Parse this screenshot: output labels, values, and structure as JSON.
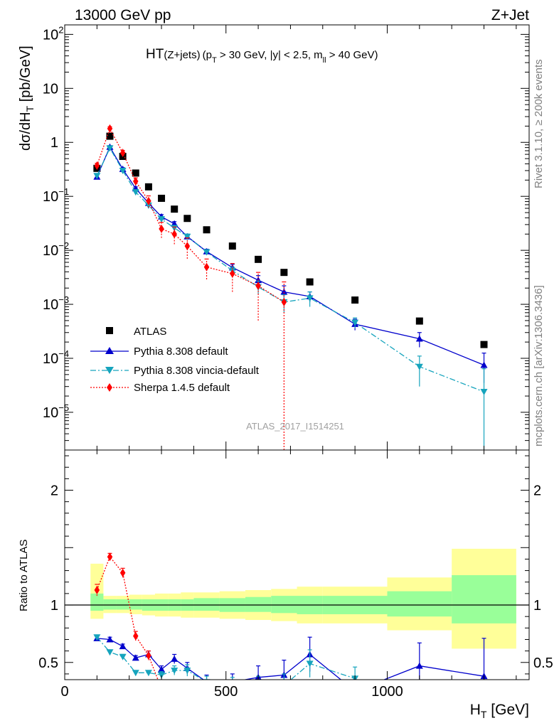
{
  "header": {
    "left_label": "13000 GeV pp",
    "right_label": "Z+Jet"
  },
  "side_labels": {
    "rivet": "Rivet 3.1.10, ≥ 200k events",
    "mcplots": "mcplots.cern.ch [arXiv:1306.3436]"
  },
  "chart_data": [
    {
      "type": "scatter",
      "panel": "main",
      "title": "HT(Z+jets) (pT > 30 GeV, |y| < 2.5, mll > 40 GeV)",
      "title_parts": {
        "base": "HT",
        "paren": "(Z+jets)",
        "p": "(p",
        "T": "T",
        "cut1": " > 30 GeV, |y| < 2.5, m",
        "ll": "ll",
        "cut2": " > 40 GeV)"
      },
      "ylabel": "dσ/dH_T [pb/GeV]",
      "ylabel_parts": {
        "main": "dσ/dH",
        "sub": "T",
        "unit": " [pb/GeV]"
      },
      "xlabel": "H_T [GeV]",
      "xlim": [
        0,
        1440
      ],
      "ylim": [
        2e-06,
        150
      ],
      "yscale": "log",
      "y_ticks": [
        {
          "value": 100,
          "base": "10",
          "exp": "2"
        },
        {
          "value": 10,
          "base": "10",
          "exp": ""
        },
        {
          "value": 1,
          "base": "1",
          "exp": ""
        },
        {
          "value": 0.1,
          "base": "10",
          "exp": "−1"
        },
        {
          "value": 0.01,
          "base": "10",
          "exp": "−2"
        },
        {
          "value": 0.001,
          "base": "10",
          "exp": "−3"
        },
        {
          "value": 0.0001,
          "base": "10",
          "exp": "−4"
        },
        {
          "value": 1e-05,
          "base": "10",
          "exp": "−5"
        }
      ],
      "watermark": "ATLAS_2017_I1514251",
      "legend_position": "lower-left",
      "series": [
        {
          "name": "ATLAS",
          "color": "#000000",
          "marker": "square",
          "x": [
            100,
            140,
            180,
            220,
            260,
            300,
            340,
            380,
            440,
            520,
            600,
            680,
            760,
            900,
            1100,
            1300
          ],
          "y": [
            0.33,
            1.3,
            0.55,
            0.27,
            0.15,
            0.092,
            0.058,
            0.039,
            0.024,
            0.012,
            0.0068,
            0.0039,
            0.0026,
            0.0012,
            0.00049,
            0.00018
          ]
        },
        {
          "name": "Pythia 8.308 default",
          "color": "#0000cc",
          "marker": "triangle-up",
          "line": "solid",
          "x": [
            100,
            140,
            180,
            220,
            260,
            300,
            340,
            380,
            440,
            520,
            600,
            680,
            760,
            900,
            1100,
            1300
          ],
          "y": [
            0.23,
            0.82,
            0.32,
            0.14,
            0.075,
            0.042,
            0.031,
            0.018,
            0.0095,
            0.0048,
            0.0028,
            0.0017,
            0.0014,
            0.00043,
            0.00023,
            7.5e-05
          ],
          "err_low": [
            0.02,
            0.05,
            0.02,
            0.01,
            0.006,
            0.004,
            0.003,
            0.002,
            0.001,
            0.0007,
            0.0006,
            0.0005,
            0.0003,
            0.0001,
            7e-05,
            4e-05
          ],
          "err_high": [
            0.02,
            0.05,
            0.02,
            0.01,
            0.006,
            0.004,
            0.003,
            0.002,
            0.001,
            0.0007,
            0.0006,
            0.0005,
            0.0003,
            0.0001,
            7e-05,
            5e-05
          ]
        },
        {
          "name": "Pythia 8.308 vincia-default",
          "color": "#16a4bd",
          "marker": "triangle-down",
          "line": "dashdot",
          "x": [
            100,
            140,
            180,
            220,
            260,
            300,
            340,
            380,
            440,
            520,
            600,
            680,
            760,
            900,
            1100,
            1300
          ],
          "y": [
            0.24,
            0.78,
            0.3,
            0.12,
            0.068,
            0.038,
            0.026,
            0.018,
            0.0093,
            0.0042,
            0.0021,
            0.0011,
            0.0013,
            0.00046,
            7e-05,
            2.4e-05
          ],
          "err_low": [
            0.02,
            0.05,
            0.02,
            0.01,
            0.006,
            0.004,
            0.003,
            0.002,
            0.001,
            0.0007,
            0.0006,
            0.0004,
            0.0004,
            0.0001,
            4e-05,
            2.3e-05
          ],
          "err_high": [
            0.02,
            0.05,
            0.02,
            0.01,
            0.006,
            0.004,
            0.003,
            0.002,
            0.001,
            0.0007,
            0.0006,
            0.0004,
            0.0004,
            0.0001,
            4e-05,
            4e-05
          ]
        },
        {
          "name": "Sherpa 1.4.5 default",
          "color": "#ff0000",
          "marker": "diamond",
          "line": "dotted",
          "x": [
            100,
            140,
            180,
            220,
            260,
            300,
            340,
            380,
            440,
            520,
            600,
            680
          ],
          "y": [
            0.37,
            1.8,
            0.64,
            0.19,
            0.082,
            0.025,
            0.02,
            0.012,
            0.0049,
            0.0037,
            0.0022,
            0.0011
          ],
          "err_low": [
            0.04,
            0.15,
            0.07,
            0.03,
            0.02,
            0.008,
            0.007,
            0.005,
            0.002,
            0.002,
            0.0017,
            0.0011
          ],
          "err_high": [
            0.04,
            0.15,
            0.07,
            0.03,
            0.02,
            0.008,
            0.007,
            0.005,
            0.002,
            0.002,
            0.0017,
            0.0015
          ]
        }
      ]
    },
    {
      "type": "line",
      "panel": "ratio",
      "ylabel": "Ratio to ATLAS",
      "xlabel": "H_T [GeV]",
      "xlabel_parts": {
        "main": "H",
        "sub": "T",
        "unit": " [GeV]"
      },
      "xlim": [
        0,
        1440
      ],
      "ylim": [
        0.35,
        2.35
      ],
      "x_ticks": [
        0,
        500,
        1000
      ],
      "y_ticks": [
        0.5,
        1,
        2
      ],
      "bands": {
        "bin_edges": [
          80,
          120,
          160,
          200,
          240,
          280,
          320,
          360,
          400,
          480,
          560,
          640,
          720,
          800,
          1000,
          1200,
          1400
        ],
        "outer_low": [
          0.88,
          0.93,
          0.93,
          0.92,
          0.91,
          0.9,
          0.9,
          0.89,
          0.89,
          0.88,
          0.87,
          0.86,
          0.84,
          0.84,
          0.78,
          0.62
        ],
        "outer_high": [
          1.36,
          1.08,
          1.08,
          1.09,
          1.09,
          1.1,
          1.1,
          1.11,
          1.11,
          1.12,
          1.13,
          1.14,
          1.16,
          1.16,
          1.24,
          1.49
        ],
        "inner_low": [
          0.95,
          0.96,
          0.96,
          0.96,
          0.95,
          0.95,
          0.95,
          0.95,
          0.95,
          0.94,
          0.94,
          0.93,
          0.92,
          0.92,
          0.9,
          0.84
        ],
        "inner_high": [
          1.1,
          1.05,
          1.05,
          1.05,
          1.05,
          1.05,
          1.05,
          1.05,
          1.06,
          1.06,
          1.07,
          1.08,
          1.08,
          1.08,
          1.12,
          1.26
        ],
        "outer_color": "#ffff99",
        "inner_color": "#99ff99"
      },
      "series": [
        {
          "name": "Pythia 8.308 default",
          "color": "#0000cc",
          "marker": "triangle-up",
          "x": [
            100,
            140,
            180,
            220,
            260,
            300,
            340,
            380,
            440,
            520,
            600,
            680,
            760,
            900,
            1100,
            1300
          ],
          "y": [
            0.71,
            0.7,
            0.64,
            0.54,
            0.57,
            0.44,
            0.53,
            0.45,
            0.33,
            0.33,
            0.37,
            0.39,
            0.57,
            0.25,
            0.47,
            0.38
          ],
          "err": [
            0.02,
            0.02,
            0.02,
            0.02,
            0.03,
            0.03,
            0.04,
            0.05,
            0.06,
            0.07,
            0.1,
            0.13,
            0.15,
            0.1,
            0.2,
            0.33
          ]
        },
        {
          "name": "Pythia 8.308 vincia-default",
          "color": "#16a4bd",
          "marker": "triangle-down",
          "x": [
            100,
            140,
            180,
            220,
            260,
            300,
            340,
            380,
            440,
            520,
            600,
            680,
            760,
            900
          ],
          "y": [
            0.72,
            0.59,
            0.55,
            0.41,
            0.41,
            0.39,
            0.43,
            0.43,
            0.33,
            0.31,
            0.3,
            0.3,
            0.49,
            0.36
          ],
          "err": [
            0.02,
            0.02,
            0.02,
            0.02,
            0.02,
            0.03,
            0.04,
            0.05,
            0.05,
            0.06,
            0.08,
            0.1,
            0.12,
            0.1
          ]
        },
        {
          "name": "Sherpa 1.4.5 default",
          "color": "#ff0000",
          "marker": "diamond",
          "x": [
            100,
            140,
            180,
            220,
            260,
            300
          ],
          "y": [
            1.13,
            1.42,
            1.28,
            0.73,
            0.56,
            0.27
          ],
          "err": [
            0.05,
            0.03,
            0.04,
            0.04,
            0.04,
            0.05
          ]
        }
      ],
      "reference_line": 1
    }
  ]
}
